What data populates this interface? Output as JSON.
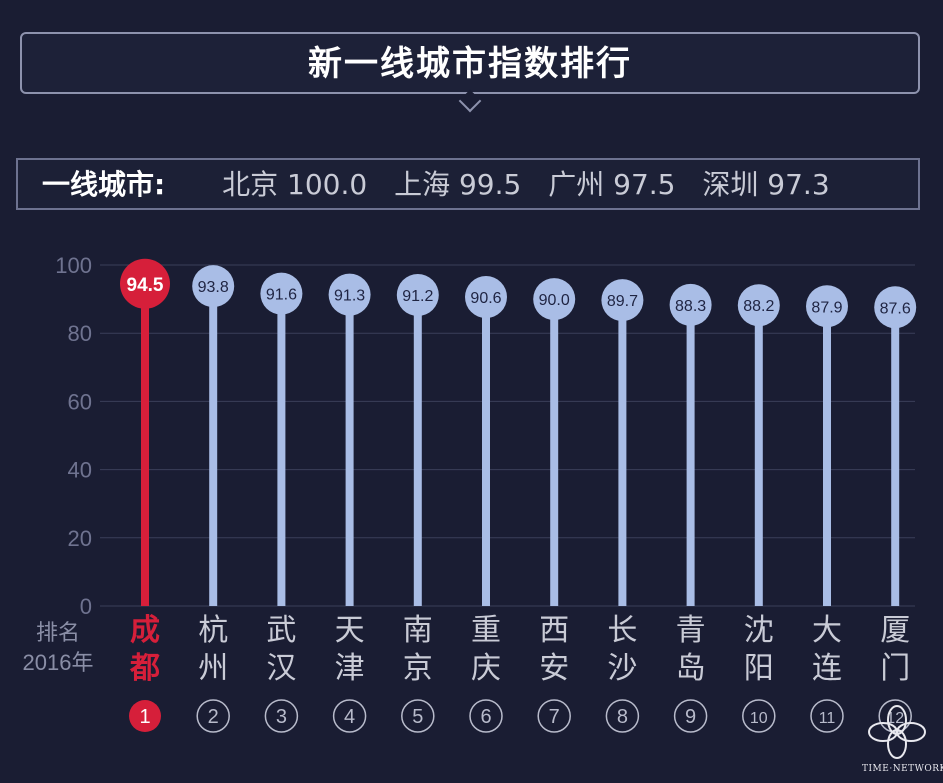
{
  "title": "新一线城市指数排行",
  "tier1": {
    "label": "一线城市:",
    "items": [
      "北京 100.0",
      "上海 99.5",
      "广州 97.5",
      "深圳 97.3"
    ]
  },
  "axis_labels": {
    "rank_label_1": "排名",
    "rank_label_2": "2016年"
  },
  "colors": {
    "highlight": "#d61f3a",
    "bar": "#a9bde6",
    "background": "#1a1d33",
    "grid": "#3a3f5a"
  },
  "watermark": {
    "text": "TIME·NETWORK"
  },
  "chart_data": {
    "type": "bar",
    "title": "新一线城市指数排行",
    "categories": [
      "成都",
      "杭州",
      "武汉",
      "天津",
      "南京",
      "重庆",
      "西安",
      "长沙",
      "青岛",
      "沈阳",
      "大连",
      "厦门"
    ],
    "values": [
      94.5,
      93.8,
      91.6,
      91.3,
      91.2,
      90.6,
      90.0,
      89.7,
      88.3,
      88.2,
      87.9,
      87.6
    ],
    "value_labels": [
      "94.5",
      "93.8",
      "91.6",
      "91.3",
      "91.2",
      "90.6",
      "90.0",
      "89.7",
      "88.3",
      "88.2",
      "87.9",
      "87.6"
    ],
    "ranks": [
      "1",
      "2",
      "3",
      "4",
      "5",
      "6",
      "7",
      "8",
      "9",
      "10",
      "11",
      "12"
    ],
    "yticks": [
      "0",
      "20",
      "40",
      "60",
      "80",
      "100"
    ],
    "ylim": [
      0,
      100
    ],
    "highlight_index": 0,
    "grid": true
  }
}
